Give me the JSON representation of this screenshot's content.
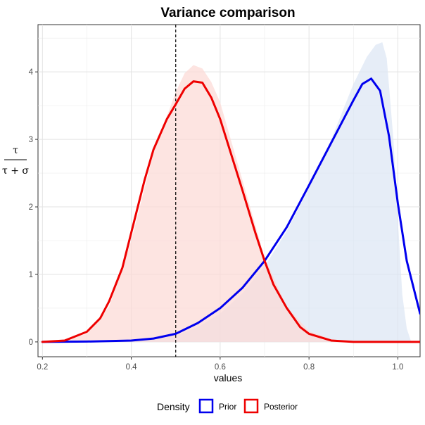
{
  "chart_data": {
    "type": "area",
    "title": "Variance comparison",
    "xlabel": "values",
    "ylabel": {
      "numerator": "τ",
      "denominator": "τ + σ"
    },
    "xlim": [
      0.19,
      1.05
    ],
    "ylim": [
      -0.22,
      4.7
    ],
    "x_ticks": [
      0.2,
      0.4,
      0.6,
      0.8,
      1.0
    ],
    "x_tick_labels": [
      "0.2",
      "0.4",
      "0.6",
      "0.8",
      "1.0"
    ],
    "y_ticks": [
      0,
      1,
      2,
      3,
      4
    ],
    "y_tick_labels": [
      "0",
      "1",
      "2",
      "3",
      "4"
    ],
    "grid": true,
    "reference_line": {
      "x": 0.5,
      "style": "dashed",
      "color": "#000000"
    },
    "legend": {
      "title": "Density",
      "position": "bottom",
      "entries": [
        {
          "label": "Prior",
          "color": "#0000ee"
        },
        {
          "label": "Posterior",
          "color": "#ee0000"
        }
      ]
    },
    "shaded_areas": [
      {
        "series": "Prior",
        "fill": "#dbe6f3",
        "x": [
          0.2,
          0.3,
          0.4,
          0.45,
          0.5,
          0.55,
          0.6,
          0.65,
          0.7,
          0.75,
          0.8,
          0.85,
          0.9,
          0.93,
          0.95,
          0.965,
          0.975,
          0.99,
          1.0,
          1.01,
          1.02,
          1.03
        ],
        "y": [
          0.0,
          0.005,
          0.02,
          0.04,
          0.09,
          0.22,
          0.42,
          0.72,
          1.12,
          1.64,
          2.28,
          3.0,
          3.82,
          4.22,
          4.4,
          4.44,
          4.2,
          3.0,
          1.8,
          0.7,
          0.2,
          0.0
        ]
      },
      {
        "series": "Posterior",
        "fill": "#fcd9d4",
        "x": [
          0.2,
          0.25,
          0.3,
          0.35,
          0.4,
          0.45,
          0.5,
          0.52,
          0.54,
          0.56,
          0.58,
          0.6,
          0.65,
          0.7,
          0.75,
          0.8,
          0.85,
          0.9
        ],
        "y": [
          0.0,
          0.02,
          0.12,
          0.52,
          1.5,
          2.8,
          3.7,
          3.98,
          4.1,
          4.05,
          3.85,
          3.55,
          2.4,
          1.25,
          0.52,
          0.16,
          0.04,
          0.0
        ]
      }
    ],
    "series": [
      {
        "name": "Prior",
        "color": "#0000ee",
        "x": [
          0.2,
          0.3,
          0.4,
          0.45,
          0.5,
          0.55,
          0.6,
          0.65,
          0.7,
          0.75,
          0.8,
          0.85,
          0.9,
          0.92,
          0.94,
          0.96,
          0.98,
          1.0,
          1.02,
          1.05
        ],
        "y": [
          0.0,
          0.005,
          0.02,
          0.05,
          0.12,
          0.28,
          0.5,
          0.8,
          1.2,
          1.7,
          2.32,
          2.95,
          3.58,
          3.82,
          3.9,
          3.72,
          3.05,
          2.05,
          1.2,
          0.42
        ]
      },
      {
        "name": "Posterior",
        "color": "#ee0000",
        "x": [
          0.2,
          0.25,
          0.3,
          0.33,
          0.35,
          0.38,
          0.4,
          0.43,
          0.45,
          0.48,
          0.5,
          0.52,
          0.54,
          0.56,
          0.58,
          0.6,
          0.62,
          0.65,
          0.68,
          0.7,
          0.72,
          0.75,
          0.78,
          0.8,
          0.85,
          0.9,
          1.05
        ],
        "y": [
          0.0,
          0.02,
          0.15,
          0.35,
          0.6,
          1.1,
          1.62,
          2.4,
          2.85,
          3.3,
          3.52,
          3.75,
          3.86,
          3.84,
          3.62,
          3.3,
          2.88,
          2.25,
          1.6,
          1.2,
          0.85,
          0.5,
          0.22,
          0.12,
          0.02,
          0.0,
          0.0
        ]
      }
    ]
  }
}
